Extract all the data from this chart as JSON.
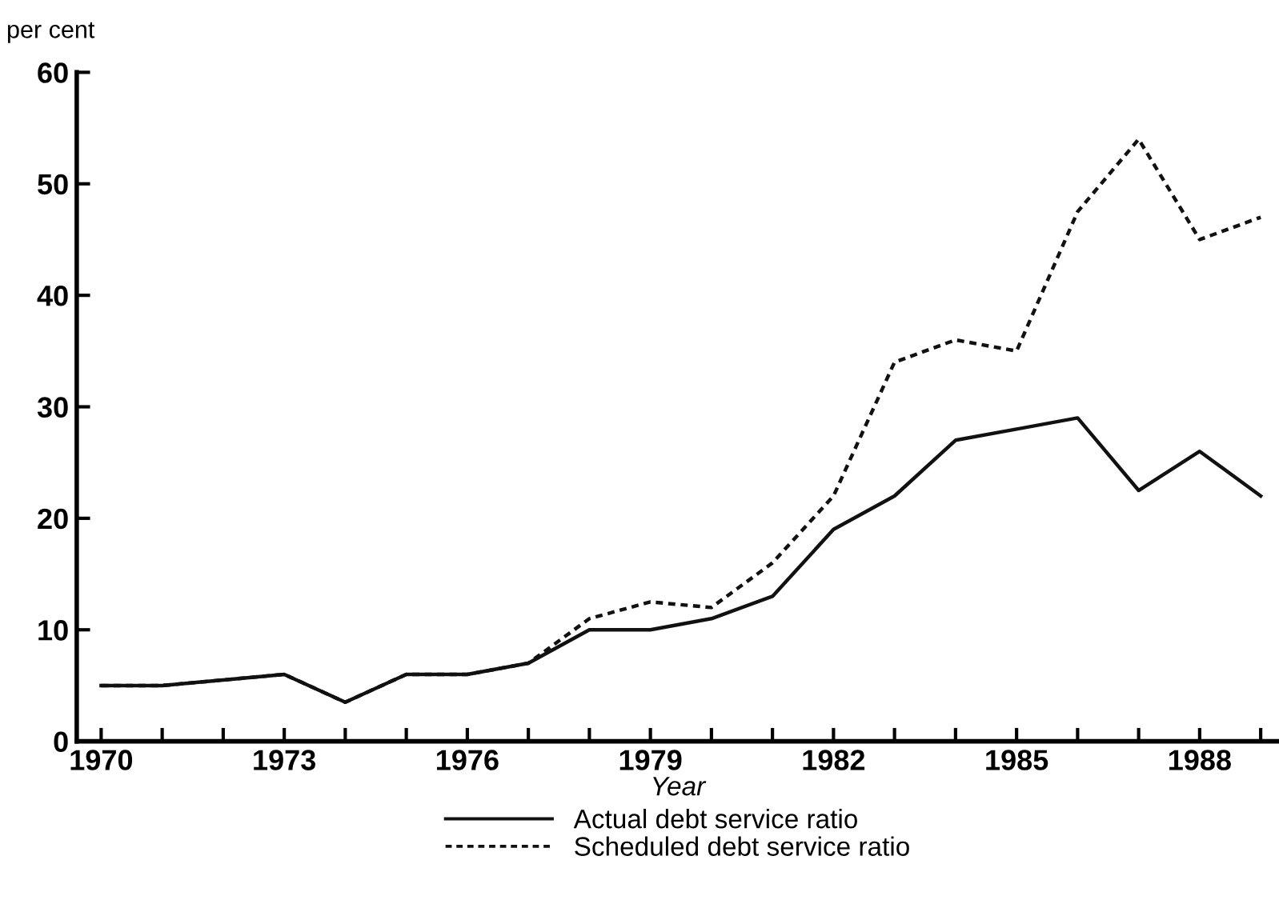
{
  "chart_data": {
    "type": "line",
    "ylabel": "per cent",
    "xlabel": "Year",
    "x": [
      1970,
      1971,
      1972,
      1973,
      1974,
      1975,
      1976,
      1977,
      1978,
      1979,
      1980,
      1981,
      1982,
      1983,
      1984,
      1985,
      1986,
      1987,
      1988,
      1989
    ],
    "series": [
      {
        "name": "Actual debt service ratio",
        "color": "#111111",
        "line_style": "solid",
        "values": [
          5,
          5,
          5.5,
          6,
          3.5,
          6,
          6,
          7,
          10,
          10,
          11,
          13,
          19,
          22,
          27,
          28,
          29,
          22.5,
          26,
          22
        ]
      },
      {
        "name": "Scheduled debt service ratio",
        "color": "#111111",
        "line_style": "dotted",
        "values": [
          5,
          5,
          5.5,
          6,
          3.5,
          6,
          6,
          7,
          11,
          12.5,
          12,
          16,
          22,
          34,
          36,
          35,
          47.5,
          54,
          45,
          47
        ]
      }
    ],
    "xlim": [
      1969.6,
      1989.3
    ],
    "ylim": [
      0,
      60
    ],
    "xticks": [
      1970,
      {
        "value": 1971,
        "label": null
      },
      {
        "value": 1972,
        "label": null
      },
      1973,
      {
        "value": 1974,
        "label": null
      },
      {
        "value": 1975,
        "label": null
      },
      1976,
      {
        "value": 1977,
        "label": null
      },
      {
        "value": 1978,
        "label": null
      },
      1979,
      {
        "value": 1980,
        "label": null
      },
      {
        "value": 1981,
        "label": null
      },
      1982,
      {
        "value": 1983,
        "label": null
      },
      {
        "value": 1984,
        "label": null
      },
      1985,
      {
        "value": 1986,
        "label": null
      },
      {
        "value": 1987,
        "label": null
      },
      1988,
      {
        "value": 1989,
        "label": null
      }
    ],
    "yticks": [
      0,
      10,
      20,
      30,
      40,
      50,
      60
    ],
    "grid": false,
    "legend": "bottom",
    "marker": "none"
  }
}
